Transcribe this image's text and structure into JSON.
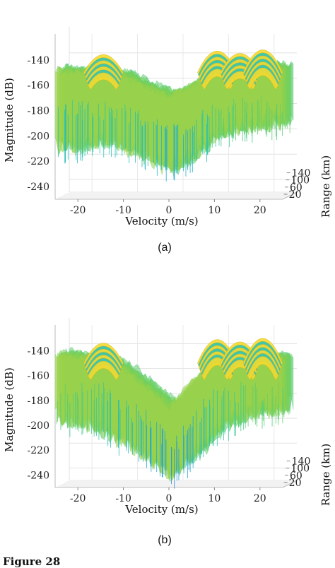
{
  "chart_data": [
    {
      "type": "surface",
      "caption": "(a)",
      "xlabel": "Velocity (m/s)",
      "ylabel": "Magnitude (dB)",
      "zlabel": "Range (km)",
      "x_ticks": [
        -20,
        -10,
        0,
        10,
        20
      ],
      "y_ticks": [
        -140,
        -160,
        -180,
        -200,
        -220,
        -240
      ],
      "z_ticks": [
        140,
        100,
        60,
        20
      ],
      "xlim": [
        -25,
        25
      ],
      "ylim": [
        -250,
        -125
      ],
      "zlim": [
        0,
        150
      ],
      "grid": true,
      "peaks": [
        {
          "velocity": -15,
          "magnitude": -135
        },
        {
          "velocity": 10,
          "magnitude": -132
        },
        {
          "velocity": 15,
          "magnitude": -134
        },
        {
          "velocity": 20,
          "magnitude": -131
        }
      ],
      "floor_profile": {
        "velocity": [
          -25,
          -20,
          -15,
          -10,
          -5,
          0,
          5,
          10,
          15,
          20,
          25
        ],
        "magnitude": [
          -148,
          -150,
          -148,
          -153,
          -162,
          -168,
          -160,
          -146,
          -146,
          -146,
          -146
        ]
      },
      "min_profile": {
        "velocity": [
          -25,
          -20,
          -15,
          -10,
          -5,
          0,
          5,
          10,
          15,
          20,
          25
        ],
        "magnitude": [
          -210,
          -210,
          -205,
          -210,
          -218,
          -228,
          -215,
          -200,
          -195,
          -193,
          -190
        ]
      }
    },
    {
      "type": "surface",
      "caption": "(b)",
      "xlabel": "Velocity (m/s)",
      "ylabel": "Magnitude (dB)",
      "zlabel": "Range (km)",
      "x_ticks": [
        -20,
        -10,
        0,
        10,
        20
      ],
      "y_ticks": [
        -140,
        -160,
        -180,
        -200,
        -220,
        -240
      ],
      "z_ticks": [
        140,
        100,
        60,
        20
      ],
      "xlim": [
        -25,
        25
      ],
      "ylim": [
        -250,
        -125
      ],
      "zlim": [
        0,
        150
      ],
      "grid": true,
      "peaks": [
        {
          "velocity": -15,
          "magnitude": -133
        },
        {
          "velocity": 10,
          "magnitude": -130
        },
        {
          "velocity": 15,
          "magnitude": -132
        },
        {
          "velocity": 20,
          "magnitude": -129
        }
      ],
      "floor_profile": {
        "velocity": [
          -25,
          -20,
          -15,
          -10,
          -5,
          0,
          5,
          10,
          15,
          20,
          25
        ],
        "magnitude": [
          -143,
          -145,
          -146,
          -155,
          -170,
          -185,
          -165,
          -148,
          -145,
          -146,
          -146
        ]
      },
      "min_profile": {
        "velocity": [
          -25,
          -20,
          -15,
          -10,
          -5,
          0,
          5,
          10,
          15,
          20,
          25
        ],
        "magnitude": [
          -195,
          -200,
          -205,
          -215,
          -228,
          -240,
          -225,
          -205,
          -195,
          -190,
          -188
        ]
      }
    }
  ],
  "figure_label": "Figure 28"
}
